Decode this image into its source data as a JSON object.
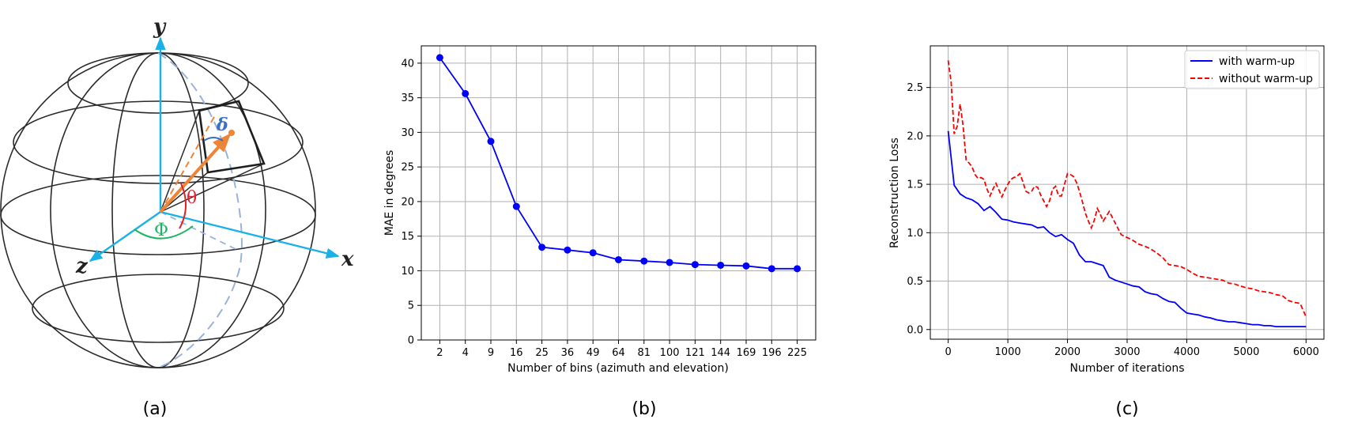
{
  "captions": {
    "a": "(a)",
    "b": "(b)",
    "c": "(c)"
  },
  "sphere": {
    "axis_labels": {
      "x": "x",
      "y": "y",
      "z": "z"
    },
    "angle_labels": {
      "theta": "θ",
      "phi": "Φ",
      "delta": "δ"
    },
    "colors": {
      "axes": "#1ab0e8",
      "vector": "#ee8436",
      "theta": "#e0202a",
      "phi": "#1db561",
      "delta": "#3a6fc4",
      "meridian": "#9ab3da"
    }
  },
  "chart_data": [
    {
      "type": "line",
      "title": "",
      "xlabel": "Number of bins (azimuth and elevation)",
      "ylabel": "MAE in degrees",
      "categories": [
        "2",
        "4",
        "9",
        "16",
        "25",
        "36",
        "49",
        "64",
        "81",
        "100",
        "121",
        "144",
        "169",
        "196",
        "225"
      ],
      "series": [
        {
          "values": [
            40.8,
            35.6,
            28.7,
            19.3,
            13.4,
            13.0,
            12.6,
            11.6,
            11.4,
            11.2,
            10.9,
            10.8,
            10.7,
            10.3,
            10.3
          ],
          "color": "#0000ff",
          "marker": "circle"
        }
      ],
      "ylim": [
        0,
        42.5
      ],
      "yticks": [
        0,
        5,
        10,
        15,
        20,
        25,
        30,
        35,
        40
      ],
      "grid": true
    },
    {
      "type": "line",
      "title": "",
      "xlabel": "Number of iterations",
      "ylabel": "Reconstruction Loss",
      "xlim": [
        -300,
        6300
      ],
      "ylim": [
        -0.1,
        2.93
      ],
      "xticks": [
        0,
        1000,
        2000,
        3000,
        4000,
        5000,
        6000
      ],
      "yticks": [
        0.0,
        0.5,
        1.0,
        1.5,
        2.0,
        2.5
      ],
      "grid": true,
      "legend_position": "top-right",
      "series": [
        {
          "name": "with warm-up",
          "color": "#0000ff",
          "style": "solid",
          "x": [
            0,
            100,
            200,
            300,
            400,
            500,
            600,
            700,
            800,
            900,
            1000,
            1100,
            1200,
            1300,
            1400,
            1500,
            1600,
            1700,
            1800,
            1900,
            2000,
            2100,
            2200,
            2300,
            2400,
            2500,
            2600,
            2700,
            2800,
            2900,
            3000,
            3100,
            3200,
            3300,
            3400,
            3500,
            3600,
            3700,
            3800,
            3900,
            4000,
            4100,
            4200,
            4300,
            4400,
            4500,
            4600,
            4700,
            4800,
            4900,
            5000,
            5100,
            5200,
            5300,
            5400,
            5500,
            5600,
            5700,
            5800,
            5900,
            6000
          ],
          "y": [
            2.05,
            1.49,
            1.4,
            1.36,
            1.34,
            1.3,
            1.23,
            1.27,
            1.21,
            1.14,
            1.13,
            1.11,
            1.1,
            1.09,
            1.08,
            1.05,
            1.06,
            1.0,
            0.96,
            0.98,
            0.93,
            0.89,
            0.77,
            0.7,
            0.7,
            0.68,
            0.66,
            0.54,
            0.51,
            0.49,
            0.47,
            0.45,
            0.44,
            0.39,
            0.37,
            0.36,
            0.32,
            0.29,
            0.28,
            0.22,
            0.17,
            0.16,
            0.15,
            0.13,
            0.12,
            0.1,
            0.09,
            0.08,
            0.08,
            0.07,
            0.06,
            0.05,
            0.05,
            0.04,
            0.04,
            0.03,
            0.03,
            0.03,
            0.03,
            0.03,
            0.03
          ]
        },
        {
          "name": "without warm-up",
          "color": "#ff0000",
          "style": "dashed",
          "x": [
            0,
            50,
            100,
            150,
            200,
            250,
            300,
            350,
            400,
            450,
            500,
            550,
            600,
            650,
            700,
            750,
            800,
            850,
            900,
            950,
            1000,
            1050,
            1100,
            1150,
            1200,
            1250,
            1300,
            1350,
            1400,
            1450,
            1500,
            1550,
            1600,
            1650,
            1700,
            1750,
            1800,
            1850,
            1900,
            1950,
            2000,
            2050,
            2100,
            2150,
            2200,
            2250,
            2300,
            2350,
            2400,
            2450,
            2500,
            2550,
            2600,
            2650,
            2700,
            2750,
            2800,
            2900,
            3000,
            3100,
            3200,
            3300,
            3400,
            3500,
            3600,
            3700,
            3800,
            3900,
            4000,
            4100,
            4200,
            4300,
            4400,
            4500,
            4600,
            4700,
            4800,
            4900,
            5000,
            5100,
            5200,
            5300,
            5400,
            5500,
            5600,
            5700,
            5800,
            5900,
            6000
          ],
          "y": [
            2.78,
            2.55,
            2.02,
            2.1,
            2.33,
            2.1,
            1.75,
            1.72,
            1.68,
            1.6,
            1.56,
            1.57,
            1.55,
            1.45,
            1.38,
            1.45,
            1.51,
            1.44,
            1.37,
            1.44,
            1.5,
            1.55,
            1.57,
            1.58,
            1.61,
            1.53,
            1.43,
            1.41,
            1.43,
            1.48,
            1.47,
            1.39,
            1.33,
            1.27,
            1.33,
            1.45,
            1.48,
            1.38,
            1.38,
            1.5,
            1.61,
            1.6,
            1.58,
            1.52,
            1.43,
            1.32,
            1.2,
            1.12,
            1.05,
            1.13,
            1.25,
            1.19,
            1.12,
            1.17,
            1.22,
            1.16,
            1.1,
            0.98,
            0.95,
            0.92,
            0.88,
            0.86,
            0.83,
            0.79,
            0.74,
            0.67,
            0.66,
            0.65,
            0.62,
            0.58,
            0.55,
            0.54,
            0.53,
            0.52,
            0.51,
            0.48,
            0.47,
            0.45,
            0.43,
            0.42,
            0.4,
            0.39,
            0.38,
            0.36,
            0.35,
            0.3,
            0.28,
            0.27,
            0.13
          ]
        }
      ]
    }
  ]
}
